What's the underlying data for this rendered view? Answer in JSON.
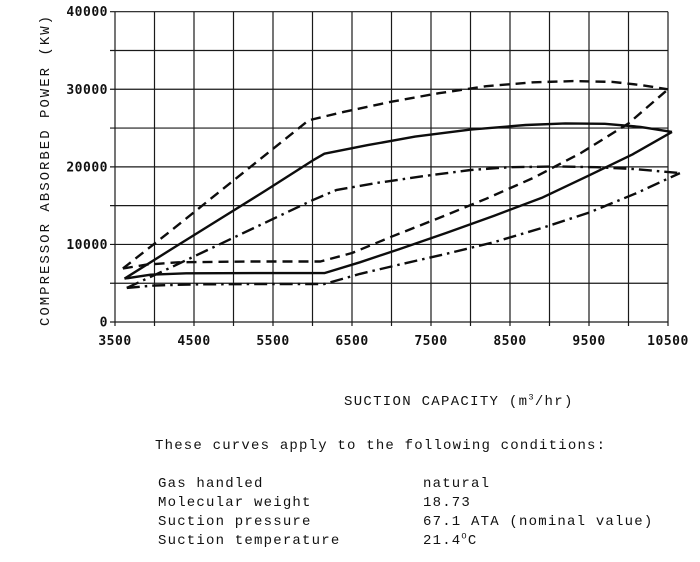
{
  "chart_data": {
    "type": "line",
    "title": "",
    "ylabel": "COMPRESSOR ABSORBED POWER (KW)",
    "xlabel_segments": [
      {
        "t": "SUCTION CAPACITY (m"
      },
      {
        "t": "3",
        "sup": true
      },
      {
        "t": "/hr)"
      }
    ],
    "xlim": [
      3500,
      10500
    ],
    "ylim": [
      0,
      40000
    ],
    "x_ticks": [
      3500,
      4500,
      5500,
      6500,
      7500,
      8500,
      9500,
      10500
    ],
    "y_ticks": [
      0,
      10000,
      20000,
      30000,
      40000
    ],
    "grid": {
      "on": true,
      "x_step": 500,
      "y_step": 5000
    },
    "legend": "none",
    "series": [
      {
        "name": "dashed-envelope-upper",
        "style": "dashed",
        "points": [
          [
            3600,
            6900
          ],
          [
            4200,
            11700
          ],
          [
            4800,
            16600
          ],
          [
            5400,
            21500
          ],
          [
            5950,
            26000
          ],
          [
            6400,
            27100
          ],
          [
            7000,
            28400
          ],
          [
            7600,
            29500
          ],
          [
            8200,
            30400
          ],
          [
            8800,
            30900
          ],
          [
            9300,
            31050
          ],
          [
            9800,
            30950
          ],
          [
            10150,
            30550
          ],
          [
            10500,
            30000
          ]
        ]
      },
      {
        "name": "dashed-envelope-lower",
        "style": "dashed",
        "points": [
          [
            3600,
            6900
          ],
          [
            3900,
            7400
          ],
          [
            4300,
            7700
          ],
          [
            5200,
            7800
          ],
          [
            6100,
            7800
          ],
          [
            6500,
            8900
          ],
          [
            7000,
            11000
          ],
          [
            7600,
            13400
          ],
          [
            8200,
            15900
          ],
          [
            8800,
            18600
          ],
          [
            9400,
            21800
          ],
          [
            10000,
            25600
          ],
          [
            10500,
            30000
          ]
        ]
      },
      {
        "name": "solid-envelope-upper",
        "style": "solid",
        "points": [
          [
            3620,
            5600
          ],
          [
            4200,
            9300
          ],
          [
            4800,
            13100
          ],
          [
            5400,
            16900
          ],
          [
            6000,
            20800
          ],
          [
            6150,
            21700
          ],
          [
            6700,
            22800
          ],
          [
            7300,
            23900
          ],
          [
            8000,
            24800
          ],
          [
            8700,
            25400
          ],
          [
            9200,
            25600
          ],
          [
            9700,
            25550
          ],
          [
            10150,
            25150
          ],
          [
            10550,
            24500
          ]
        ]
      },
      {
        "name": "solid-envelope-lower",
        "style": "solid",
        "points": [
          [
            3620,
            5600
          ],
          [
            3950,
            6100
          ],
          [
            4400,
            6280
          ],
          [
            5300,
            6300
          ],
          [
            6150,
            6300
          ],
          [
            6600,
            7700
          ],
          [
            7100,
            9400
          ],
          [
            7700,
            11500
          ],
          [
            8300,
            13700
          ],
          [
            8900,
            16000
          ],
          [
            9500,
            18900
          ],
          [
            10050,
            21600
          ],
          [
            10550,
            24500
          ]
        ]
      },
      {
        "name": "dashdot-envelope-upper",
        "style": "dashdot",
        "points": [
          [
            3650,
            4400
          ],
          [
            4200,
            7000
          ],
          [
            4800,
            9900
          ],
          [
            5400,
            12800
          ],
          [
            6000,
            15700
          ],
          [
            6300,
            17000
          ],
          [
            6800,
            17900
          ],
          [
            7400,
            18800
          ],
          [
            8000,
            19600
          ],
          [
            8500,
            19950
          ],
          [
            9100,
            20050
          ],
          [
            9600,
            19950
          ],
          [
            10100,
            19700
          ],
          [
            10650,
            19200
          ]
        ]
      },
      {
        "name": "dashdot-envelope-lower",
        "style": "dashdot",
        "points": [
          [
            3650,
            4400
          ],
          [
            4000,
            4700
          ],
          [
            4500,
            4850
          ],
          [
            5400,
            4900
          ],
          [
            6150,
            4900
          ],
          [
            6600,
            6200
          ],
          [
            7100,
            7400
          ],
          [
            7700,
            8800
          ],
          [
            8300,
            10300
          ],
          [
            8900,
            12100
          ],
          [
            9500,
            14100
          ],
          [
            10100,
            16600
          ],
          [
            10650,
            19200
          ]
        ]
      }
    ]
  },
  "conditions": {
    "intro": "These curves apply to the following conditions:",
    "rows": [
      {
        "label": "Gas handled",
        "value": [
          {
            "t": "natural"
          }
        ]
      },
      {
        "label": "Molecular weight",
        "value": [
          {
            "t": "18.73"
          }
        ]
      },
      {
        "label": "Suction pressure",
        "value": [
          {
            "t": "67.1 ATA (nominal value)"
          }
        ]
      },
      {
        "label": "Suction temperature",
        "value": [
          {
            "t": "21.4"
          },
          {
            "t": "O",
            "sup": true
          },
          {
            "t": "C"
          }
        ]
      }
    ]
  }
}
